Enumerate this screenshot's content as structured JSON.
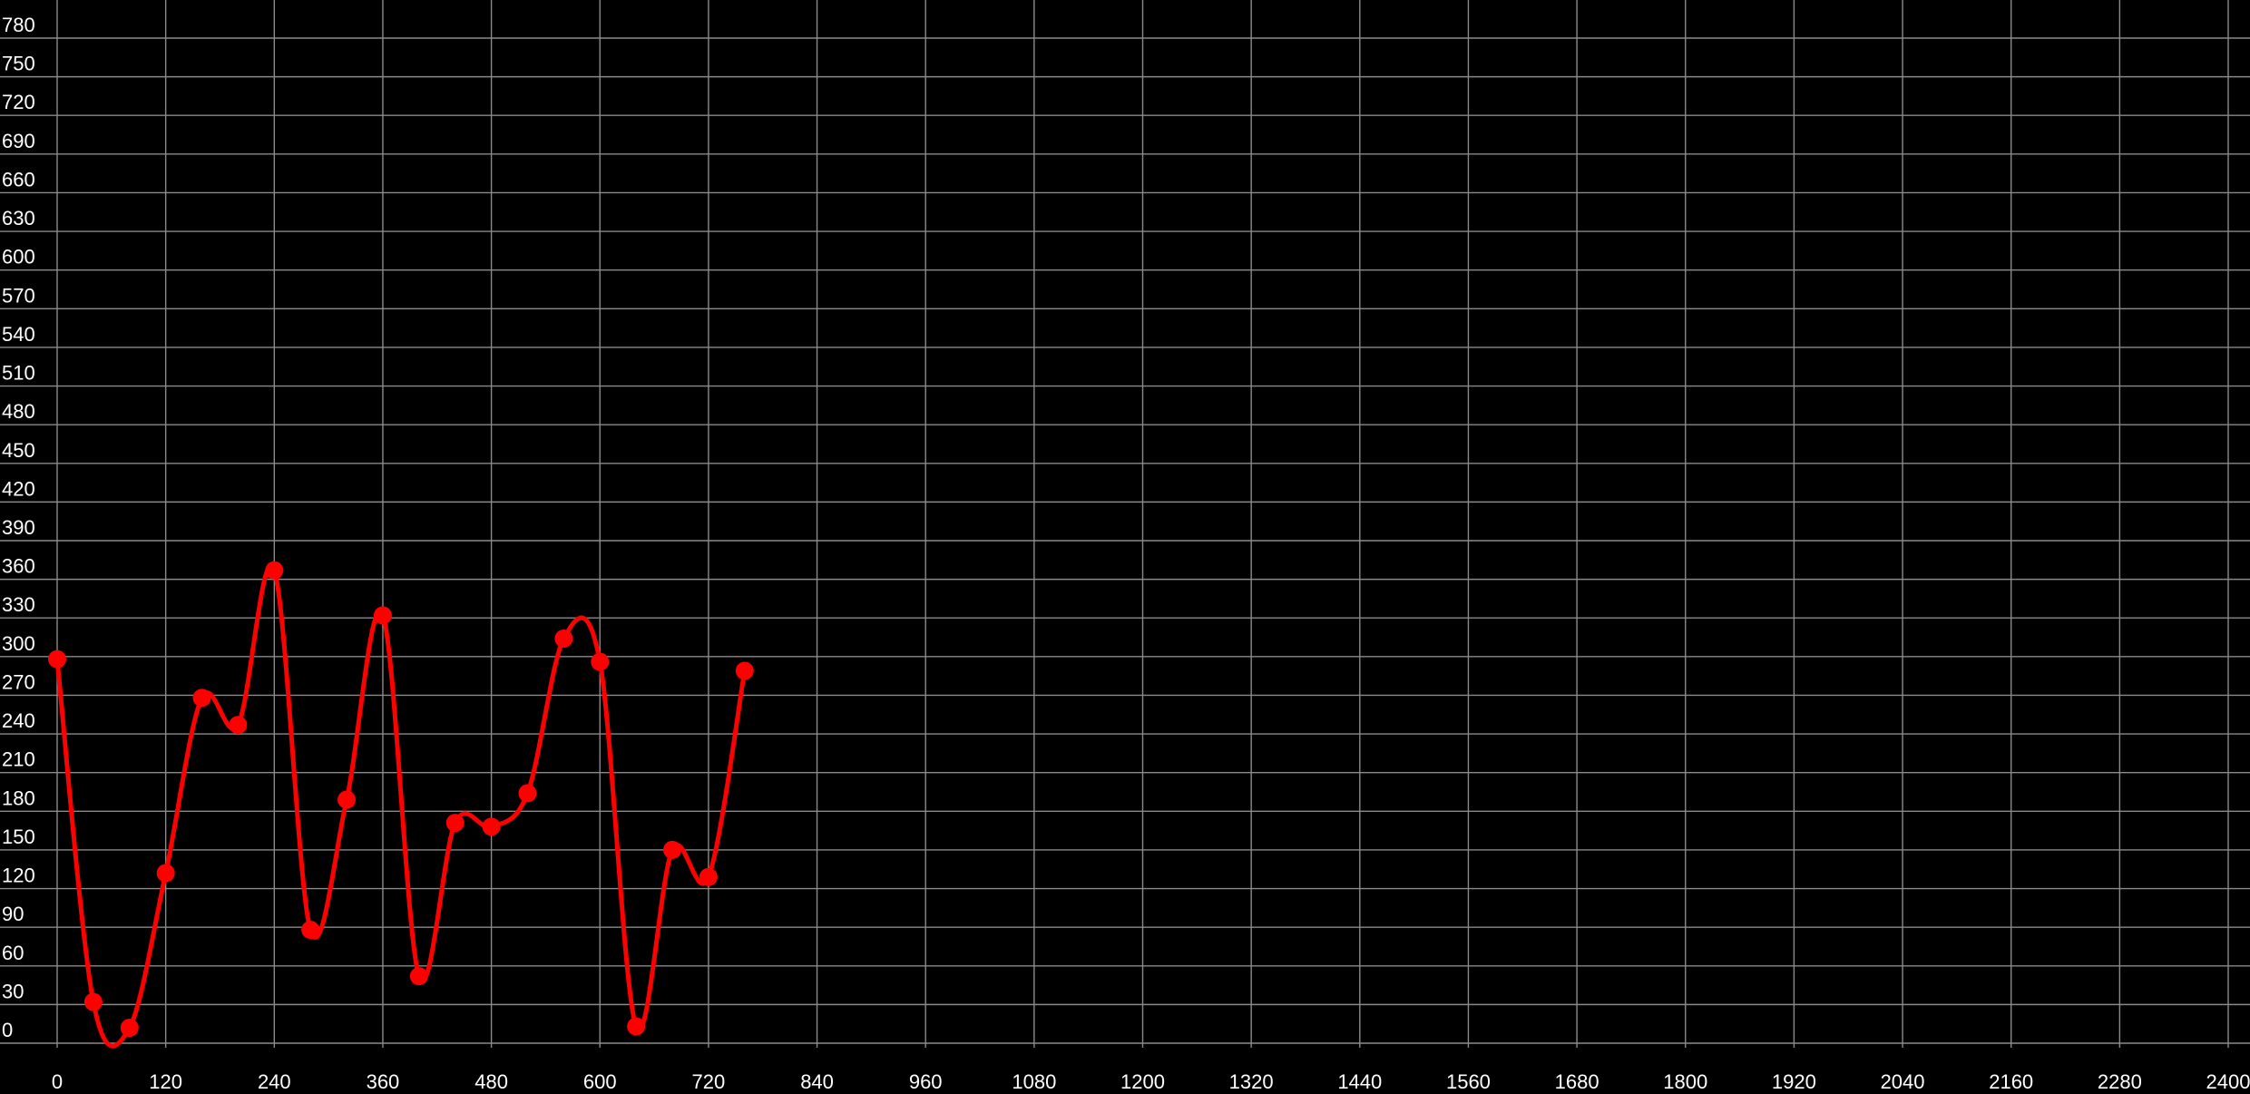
{
  "chart_data": {
    "type": "line",
    "title": "",
    "xlabel": "",
    "ylabel": "",
    "xlim": [
      0,
      2400
    ],
    "ylim": [
      0,
      780
    ],
    "x_ticks": [
      0,
      120,
      240,
      360,
      480,
      600,
      720,
      840,
      960,
      1080,
      1200,
      1320,
      1440,
      1560,
      1680,
      1800,
      1920,
      2040,
      2160,
      2280,
      2400
    ],
    "y_ticks": [
      0,
      30,
      60,
      90,
      120,
      150,
      180,
      210,
      240,
      270,
      300,
      330,
      360,
      390,
      420,
      450,
      480,
      510,
      540,
      570,
      600,
      630,
      660,
      690,
      720,
      750,
      780
    ],
    "grid": true,
    "legend": "none",
    "background_color": "#000000",
    "grid_color": "#8a8a8a",
    "label_color": "#ffffff",
    "series": [
      {
        "color": "#ff0000",
        "smooth": true,
        "markers": true,
        "x": [
          0,
          40,
          80,
          120,
          160,
          200,
          240,
          280,
          320,
          360,
          400,
          440,
          480,
          520,
          560,
          600,
          640,
          680,
          720,
          760
        ],
        "y": [
          298,
          32,
          12,
          132,
          268,
          247,
          367,
          88,
          189,
          332,
          52,
          171,
          168,
          194,
          314,
          296,
          13,
          150,
          129,
          289
        ]
      }
    ]
  }
}
